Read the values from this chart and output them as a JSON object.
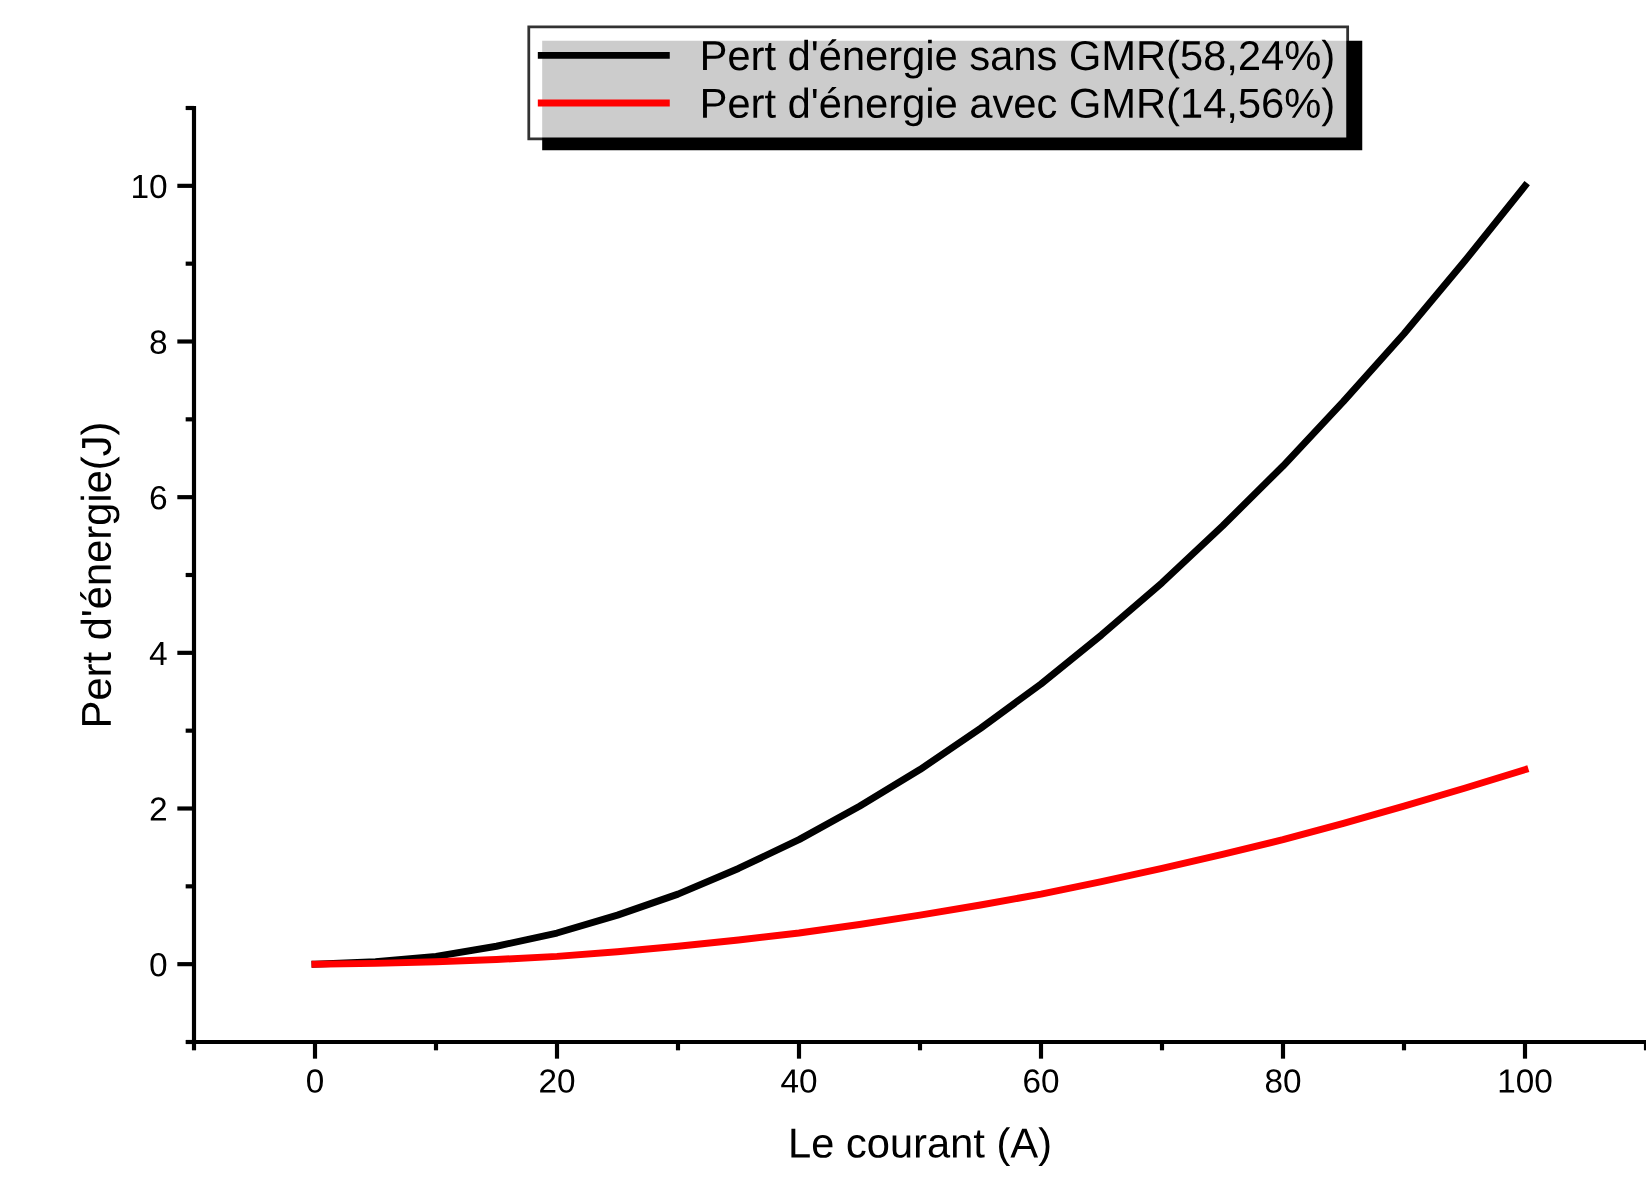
{
  "chart_data": {
    "type": "line",
    "xlabel": "Le courant (A)",
    "ylabel": "Pert d'énergie(J)",
    "x": [
      0,
      5,
      10,
      15,
      20,
      25,
      30,
      35,
      40,
      45,
      50,
      55,
      60,
      65,
      70,
      75,
      80,
      85,
      90,
      95,
      100
    ],
    "series": [
      {
        "name": "Pert d'énergie sans GMR(58,24%)",
        "color": "#000000",
        "values": [
          0,
          0.03,
          0.1,
          0.23,
          0.4,
          0.63,
          0.9,
          1.23,
          1.6,
          2.03,
          2.5,
          3.03,
          3.6,
          4.23,
          4.9,
          5.63,
          6.4,
          7.23,
          8.1,
          9.03,
          10
        ]
      },
      {
        "name": "Pert d'énergie avec GMR(14,56%)",
        "color": "#ff0000",
        "values": [
          0,
          0.01,
          0.03,
          0.06,
          0.1,
          0.16,
          0.23,
          0.31,
          0.4,
          0.51,
          0.63,
          0.76,
          0.9,
          1.06,
          1.23,
          1.41,
          1.6,
          1.81,
          2.03,
          2.26,
          2.5
        ]
      }
    ],
    "xlim": [
      -10,
      110
    ],
    "ylim": [
      -1,
      11
    ],
    "xticks": [
      0,
      20,
      40,
      60,
      80,
      100
    ],
    "yticks": [
      0,
      2,
      4,
      6,
      8,
      10
    ],
    "grid": false,
    "legend": "top",
    "marker": "none",
    "line_style": "solid"
  }
}
